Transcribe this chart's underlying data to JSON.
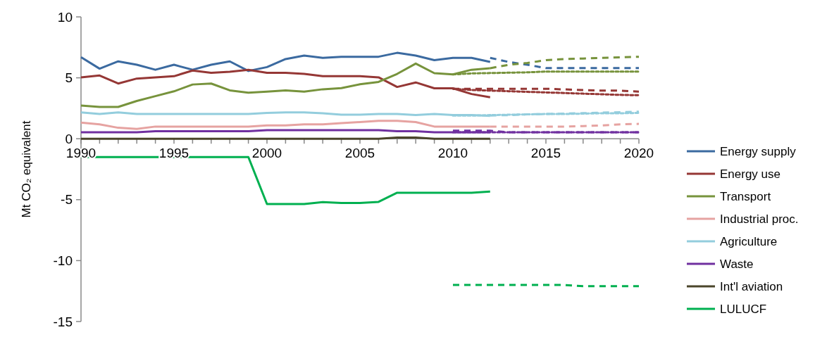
{
  "chart_data": {
    "type": "line",
    "ylabel": "Mt CO₂ equivalent",
    "x": [
      1990,
      1991,
      1992,
      1993,
      1994,
      1995,
      1996,
      1997,
      1998,
      1999,
      2000,
      2001,
      2002,
      2003,
      2004,
      2005,
      2006,
      2007,
      2008,
      2009,
      2010,
      2011,
      2012
    ],
    "xlim": [
      1990,
      2020
    ],
    "xticks": [
      1990,
      {
        "value": 1991,
        "label": null
      },
      {
        "value": 1992,
        "label": null
      },
      {
        "value": 1993,
        "label": null
      },
      {
        "value": 1994,
        "label": null
      },
      1995,
      {
        "value": 1996,
        "label": null
      },
      {
        "value": 1997,
        "label": null
      },
      {
        "value": 1998,
        "label": null
      },
      {
        "value": 1999,
        "label": null
      },
      2000,
      {
        "value": 2001,
        "label": null
      },
      {
        "value": 2002,
        "label": null
      },
      {
        "value": 2003,
        "label": null
      },
      {
        "value": 2004,
        "label": null
      },
      2005,
      {
        "value": 2006,
        "label": null
      },
      {
        "value": 2007,
        "label": null
      },
      {
        "value": 2008,
        "label": null
      },
      {
        "value": 2009,
        "label": null
      },
      2010,
      {
        "value": 2011,
        "label": null
      },
      {
        "value": 2012,
        "label": null
      },
      {
        "value": 2013,
        "label": null
      },
      {
        "value": 2014,
        "label": null
      },
      2015,
      {
        "value": 2016,
        "label": null
      },
      {
        "value": 2017,
        "label": null
      },
      {
        "value": 2018,
        "label": null
      },
      {
        "value": 2019,
        "label": null
      },
      2020
    ],
    "ylim": [
      -15,
      10
    ],
    "yticks": [
      -15,
      -10,
      -5,
      0,
      5,
      10
    ],
    "grid": false,
    "legend": "right",
    "marker": "none",
    "line_style": "solid",
    "series": [
      {
        "name": "Energy supply",
        "color": "#3b6aa0",
        "values": [
          6.7,
          5.75,
          6.35,
          6.07,
          5.66,
          6.07,
          5.66,
          6.07,
          6.35,
          5.56,
          5.88,
          6.54,
          6.82,
          6.64,
          6.73,
          6.73,
          6.73,
          7.05,
          6.82,
          6.45,
          6.64,
          6.64,
          6.3
        ]
      },
      {
        "name": "Energy use",
        "color": "#953735",
        "values": [
          5.04,
          5.19,
          4.53,
          4.94,
          5.04,
          5.13,
          5.6,
          5.41,
          5.5,
          5.66,
          5.41,
          5.41,
          5.32,
          5.13,
          5.13,
          5.13,
          5.04,
          4.25,
          4.62,
          4.14,
          4.14,
          3.67,
          3.4
        ]
      },
      {
        "name": "Transport",
        "color": "#77933c",
        "values": [
          2.73,
          2.61,
          2.61,
          3.1,
          3.5,
          3.89,
          4.45,
          4.53,
          3.97,
          3.78,
          3.87,
          3.97,
          3.87,
          4.06,
          4.15,
          4.47,
          4.66,
          5.32,
          6.17,
          5.38,
          5.28,
          5.66,
          5.79
        ]
      },
      {
        "name": "Industrial proc.",
        "color": "#e6a3a1",
        "values": [
          1.32,
          1.18,
          0.9,
          0.81,
          1.0,
          1.0,
          1.0,
          1.0,
          1.0,
          1.0,
          1.09,
          1.09,
          1.18,
          1.18,
          1.28,
          1.37,
          1.47,
          1.47,
          1.37,
          1.0,
          1.0,
          1.0,
          1.0
        ]
      },
      {
        "name": "Agriculture",
        "color": "#93cddd",
        "values": [
          2.16,
          2.03,
          2.16,
          2.03,
          2.03,
          2.03,
          2.03,
          2.03,
          2.03,
          2.03,
          2.12,
          2.16,
          2.16,
          2.09,
          1.97,
          1.97,
          2.03,
          2.03,
          1.94,
          2.03,
          1.94,
          1.94,
          1.88
        ]
      },
      {
        "name": "Waste",
        "color": "#7030a0",
        "values": [
          0.53,
          0.53,
          0.53,
          0.53,
          0.62,
          0.62,
          0.62,
          0.62,
          0.62,
          0.62,
          0.71,
          0.71,
          0.71,
          0.71,
          0.71,
          0.71,
          0.71,
          0.62,
          0.62,
          0.53,
          0.53,
          0.53,
          0.53
        ]
      },
      {
        "name": "Int'l aviation",
        "color": "#4a452a",
        "values": [
          0,
          0,
          0,
          0,
          0,
          0,
          0,
          0,
          0,
          0,
          0,
          0,
          0,
          0,
          0,
          0,
          0,
          0.1,
          0.1,
          0,
          0,
          0,
          0
        ]
      },
      {
        "name": "LULUCF",
        "color": "#00b050",
        "values": [
          -1.5,
          -1.5,
          -1.5,
          -1.5,
          -1.5,
          -1.5,
          -1.5,
          -1.5,
          -1.5,
          -1.5,
          -5.36,
          -5.36,
          -5.36,
          -5.2,
          -5.27,
          -5.27,
          -5.18,
          -4.43,
          -4.43,
          -4.43,
          -4.43,
          -4.43,
          -4.34
        ]
      },
      {
        "color": "#3b6aa0",
        "line_style": "dashed",
        "x": [
          2012,
          2013,
          2014,
          2015,
          2016,
          2017,
          2018,
          2019,
          2020
        ],
        "values": [
          6.64,
          6.3,
          6.07,
          5.8,
          5.8,
          5.8,
          5.8,
          5.8,
          5.8
        ]
      },
      {
        "color": "#953735",
        "line_style": "dashed",
        "x": [
          2010,
          2011,
          2012,
          2013,
          2014,
          2015,
          2016,
          2017,
          2018,
          2019,
          2020
        ],
        "values": [
          4.1,
          4.1,
          4.1,
          4.1,
          4.1,
          4.1,
          4.05,
          4.0,
          3.95,
          3.95,
          3.87
        ]
      },
      {
        "color": "#953735",
        "line_style": "dotted",
        "x": [
          2010,
          2011,
          2012,
          2013,
          2014,
          2015,
          2016,
          2017,
          2018,
          2019,
          2020
        ],
        "values": [
          4.1,
          4.0,
          3.95,
          3.9,
          3.85,
          3.8,
          3.75,
          3.7,
          3.65,
          3.6,
          3.57
        ]
      },
      {
        "color": "#77933c",
        "line_style": "dashed",
        "x": [
          2012,
          2013,
          2014,
          2015,
          2016,
          2017,
          2018,
          2019,
          2020
        ],
        "values": [
          5.79,
          6.07,
          6.22,
          6.45,
          6.54,
          6.58,
          6.64,
          6.68,
          6.73
        ]
      },
      {
        "color": "#77933c",
        "line_style": "dotted",
        "x": [
          2010,
          2011,
          2012,
          2013,
          2014,
          2015,
          2016,
          2017,
          2018,
          2019,
          2020
        ],
        "values": [
          5.28,
          5.36,
          5.39,
          5.42,
          5.45,
          5.51,
          5.51,
          5.51,
          5.51,
          5.51,
          5.51
        ]
      },
      {
        "color": "#e6a3a1",
        "line_style": "dashed",
        "x": [
          2012,
          2013,
          2014,
          2015,
          2016,
          2017,
          2018,
          2019,
          2020
        ],
        "values": [
          1.0,
          1.0,
          1.0,
          1.0,
          1.0,
          1.04,
          1.09,
          1.18,
          1.22
        ]
      },
      {
        "color": "#93cddd",
        "line_style": "dashed",
        "x": [
          2012,
          2013,
          2014,
          2015,
          2016,
          2017,
          2018,
          2019,
          2020
        ],
        "values": [
          1.9,
          1.94,
          2.0,
          2.03,
          2.06,
          2.1,
          2.14,
          2.18,
          2.22
        ]
      },
      {
        "color": "#93cddd",
        "line_style": "dotted",
        "x": [
          2010,
          2011,
          2012,
          2013,
          2014,
          2015,
          2016,
          2017,
          2018,
          2019,
          2020
        ],
        "values": [
          1.9,
          1.9,
          1.94,
          1.97,
          2.0,
          2.03,
          2.03,
          2.06,
          2.09,
          2.09,
          2.12
        ]
      },
      {
        "color": "#7030a0",
        "line_style": "dashed",
        "x": [
          2010,
          2011,
          2012,
          2013,
          2014,
          2015,
          2016,
          2017,
          2018,
          2019,
          2020
        ],
        "values": [
          0.66,
          0.66,
          0.66,
          0.53,
          0.53,
          0.53,
          0.53,
          0.53,
          0.53,
          0.53,
          0.53
        ]
      },
      {
        "color": "#7030a0",
        "line_style": "dotted",
        "x": [
          2010,
          2011,
          2012,
          2013,
          2014,
          2015,
          2016,
          2017,
          2018,
          2019,
          2020
        ],
        "values": [
          0.53,
          0.53,
          0.53,
          0.53,
          0.53,
          0.53,
          0.53,
          0.53,
          0.53,
          0.53,
          0.53
        ]
      },
      {
        "color": "#00b050",
        "line_style": "dashed",
        "x": [
          2010,
          2011,
          2012,
          2013,
          2014,
          2015,
          2016,
          2017,
          2018,
          2019,
          2020
        ],
        "values": [
          -12.0,
          -12.0,
          -12.0,
          -12.0,
          -12.0,
          -12.0,
          -12.0,
          -12.1,
          -12.1,
          -12.1,
          -12.1
        ]
      }
    ]
  }
}
